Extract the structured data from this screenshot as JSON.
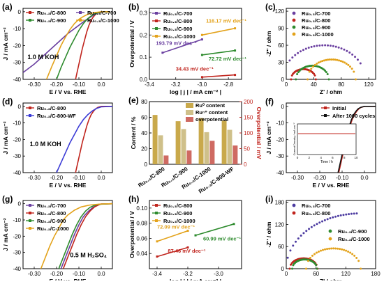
{
  "figure": {
    "panels": [
      {
        "id": "a",
        "letter": "(a)",
        "type": "line",
        "xlabel": "E / V vs. RHE",
        "ylabel": "J / mA cm⁻²",
        "xlim": [
          -0.35,
          0.05
        ],
        "ylim": [
          -40,
          2
        ],
        "xticks": [
          -0.3,
          -0.2,
          -0.1,
          0.0
        ],
        "yticks": [
          -40,
          -30,
          -20,
          -10,
          0
        ],
        "annotations": [
          {
            "text": "1.0 M KOH",
            "x": -0.33,
            "y": -28
          }
        ],
        "legend": {
          "placement": "top",
          "columns": 2
        },
        "series": [
          {
            "name": "Ru₀.₃/C-800",
            "color": "#c0241d",
            "x": [
              -0.115,
              -0.105,
              -0.095,
              -0.085,
              -0.075,
              -0.065,
              -0.055,
              -0.045,
              -0.035,
              -0.025,
              -0.015,
              0.0,
              0.04
            ],
            "y": [
              -40,
              -34,
              -28,
              -22,
              -17,
              -12,
              -8,
              -5,
              -3,
              -1.5,
              -0.6,
              0,
              0
            ]
          },
          {
            "name": "Ru₀.₃/C-700",
            "color": "#6a3fa0",
            "x": [
              -0.35,
              -0.3,
              -0.25,
              -0.2,
              -0.15,
              -0.1,
              -0.07,
              -0.04,
              -0.02,
              0.0,
              0.04
            ],
            "y": [
              -36,
              -31,
              -25,
              -19,
              -13,
              -8,
              -5,
              -2.5,
              -1,
              -0.2,
              0
            ]
          },
          {
            "name": "Ru₀.₃/C-900",
            "color": "#2e8b2e",
            "x": [
              -0.2,
              -0.18,
              -0.16,
              -0.14,
              -0.12,
              -0.1,
              -0.08,
              -0.06,
              -0.04,
              -0.02,
              0.0,
              0.04
            ],
            "y": [
              -40,
              -33,
              -27,
              -21,
              -16,
              -11,
              -7,
              -4,
              -2,
              -0.8,
              -0.1,
              0
            ]
          },
          {
            "name": "Ru₀.₃/C-1000",
            "color": "#e3a21a",
            "x": [
              -0.245,
              -0.22,
              -0.2,
              -0.18,
              -0.16,
              -0.14,
              -0.12,
              -0.1,
              -0.08,
              -0.06,
              -0.03,
              0.0,
              0.04
            ],
            "y": [
              -40,
              -32,
              -26,
              -20,
              -15,
              -10.5,
              -7,
              -4.5,
              -2.8,
              -1.5,
              -0.5,
              0,
              0
            ]
          }
        ]
      },
      {
        "id": "b",
        "letter": "(b)",
        "type": "line",
        "xlabel": "log | j | / mA cm⁻² |",
        "ylabel": "Overpotential / V",
        "xlim": [
          -3.4,
          -2.7
        ],
        "ylim": [
          0.0,
          0.32
        ],
        "xticks": [
          -3.4,
          -3.2,
          -3.0,
          -2.8
        ],
        "yticks": [
          0.0,
          0.1,
          0.2,
          0.3
        ],
        "legend": {
          "placement": "top-left",
          "columns": 1
        },
        "series": [
          {
            "name": "Ru₀.₃/C-700",
            "color": "#6a3fa0",
            "x": [
              -3.3,
              -3.0
            ],
            "y": [
              0.12,
              0.18
            ]
          },
          {
            "name": "Ru₀.₃/C-800",
            "color": "#c0241d",
            "x": [
              -3.0,
              -2.75
            ],
            "y": [
              0.01,
              0.02
            ]
          },
          {
            "name": "Ru₀.₃/C-900",
            "color": "#2e8b2e",
            "x": [
              -3.0,
              -2.75
            ],
            "y": [
              0.11,
              0.13
            ]
          },
          {
            "name": "Ru₀.₃/C-1000",
            "color": "#e3a21a",
            "x": [
              -3.0,
              -2.75
            ],
            "y": [
              0.2,
              0.23
            ]
          }
        ],
        "labels": [
          {
            "text": "193.79 mV dec⁻¹",
            "color": "#6a3fa0",
            "x": -3.35,
            "y": 0.155
          },
          {
            "text": "116.17 mV dec⁻¹",
            "color": "#e3a21a",
            "x": -2.97,
            "y": 0.255
          },
          {
            "text": "72.72 mV dec⁻¹",
            "color": "#2e8b2e",
            "x": -2.95,
            "y": 0.085
          },
          {
            "text": "34.43 mV dec⁻¹",
            "color": "#c0241d",
            "x": -3.2,
            "y": 0.04
          }
        ]
      },
      {
        "id": "c",
        "letter": "(c)",
        "type": "scatter",
        "xlabel": "Z' / ohm",
        "ylabel": "-Z'' / ohm",
        "xlim": [
          0,
          130
        ],
        "ylim": [
          0,
          125
        ],
        "xticks": [
          0,
          40,
          80,
          120
        ],
        "yticks": [
          0,
          30,
          60,
          90,
          120
        ],
        "legend": {
          "placement": "top-left",
          "columns": 1
        },
        "series": [
          {
            "name": "Ru₀.₃/C-700",
            "color": "#6a3fa0",
            "shape": "arc",
            "center": 55,
            "radius": 60,
            "from": 5,
            "to": 108
          },
          {
            "name": "Ru₀.₃/C-800",
            "color": "#c0241d",
            "shape": "arc",
            "center": 25,
            "radius": 18,
            "from": 7,
            "to": 43
          },
          {
            "name": "Ru₀.₃/C-900",
            "color": "#2e8b2e",
            "shape": "arc",
            "center": 38,
            "radius": 24,
            "from": 14,
            "to": 62
          },
          {
            "name": "Ru₀.₃/C-1000",
            "color": "#e3a21a",
            "shape": "arc",
            "center": 66,
            "radius": 35,
            "from": 31,
            "to": 101
          }
        ]
      },
      {
        "id": "d",
        "letter": "(d)",
        "type": "line",
        "xlabel": "E / V vs. RHE",
        "ylabel": "J / mA cm⁻²",
        "xlim": [
          -0.35,
          0.05
        ],
        "ylim": [
          -40,
          2
        ],
        "xticks": [
          -0.3,
          -0.2,
          -0.1,
          0.0
        ],
        "yticks": [
          -40,
          -30,
          -20,
          -10,
          0
        ],
        "annotations": [
          {
            "text": "1.0 M KOH",
            "x": -0.32,
            "y": -24
          }
        ],
        "legend": {
          "placement": "top-left",
          "columns": 1
        },
        "series": [
          {
            "name": "Ru₀.₃/C-800",
            "color": "#c0241d",
            "x": [
              -0.115,
              -0.105,
              -0.095,
              -0.085,
              -0.075,
              -0.065,
              -0.055,
              -0.045,
              -0.035,
              -0.025,
              -0.015,
              0.0,
              0.05
            ],
            "y": [
              -40,
              -34,
              -28,
              -22,
              -17,
              -12,
              -8,
              -5,
              -3,
              -1.5,
              -0.6,
              0,
              0
            ]
          },
          {
            "name": "Ru₀.₃/C-800-WF",
            "color": "#3b3bd6",
            "x": [
              -0.2,
              -0.18,
              -0.16,
              -0.14,
              -0.12,
              -0.1,
              -0.08,
              -0.06,
              -0.04,
              -0.02,
              0.0,
              0.05
            ],
            "y": [
              -40,
              -34,
              -28,
              -22,
              -17,
              -12,
              -8,
              -5,
              -2.8,
              -1.2,
              -0.3,
              0
            ]
          }
        ]
      },
      {
        "id": "e",
        "letter": "(e)",
        "type": "bar",
        "ylabel": "Content / %",
        "y2label": "Overpotential / mV",
        "ylim": [
          0,
          80
        ],
        "y2lim": [
          0,
          200
        ],
        "yticks": [
          0,
          20,
          40,
          60,
          80
        ],
        "y2ticks": [
          0,
          50,
          100,
          150,
          200
        ],
        "categories": [
          "Ru₀.₃/C-800",
          "Ru₀.₃/C-900",
          "Ru₀.₃/C-1000",
          "Ru₀.₃/C-800-WF"
        ],
        "legend": {
          "placement": "top",
          "columns": 1
        },
        "series": [
          {
            "name": "Ru⁰ content",
            "color": "#c9a94b",
            "axis": "left",
            "values": [
              63,
              55,
              59,
              56
            ]
          },
          {
            "name": "Ruⁿ⁺ content",
            "color": "#cfc08a",
            "axis": "left",
            "values": [
              37,
              45,
              41,
              44
            ]
          },
          {
            "name": "overpotential",
            "color": "#cf6a62",
            "axis": "right",
            "values": [
              28,
              44,
              75,
              60
            ]
          }
        ]
      },
      {
        "id": "f",
        "letter": "(f)",
        "type": "line",
        "xlabel": "E / V vs. RHE",
        "ylabel": "J / mA cm⁻²",
        "xlim": [
          -0.35,
          0.05
        ],
        "ylim": [
          -40,
          2
        ],
        "xticks": [
          -0.3,
          -0.2,
          -0.1,
          0.0
        ],
        "yticks": [
          -40,
          -30,
          -20,
          -10,
          0
        ],
        "legend": {
          "placement": "top-right",
          "columns": 1
        },
        "series": [
          {
            "name": "Initial",
            "color": "#c0241d",
            "x": [
              -0.115,
              -0.105,
              -0.095,
              -0.085,
              -0.075,
              -0.065,
              -0.055,
              -0.045,
              -0.035,
              -0.025,
              -0.015,
              0.0,
              0.05
            ],
            "y": [
              -40,
              -34,
              -28,
              -22,
              -17,
              -12,
              -8,
              -5,
              -3,
              -1.5,
              -0.6,
              0,
              0
            ]
          },
          {
            "name": "After 1000 cycles",
            "color": "#111111",
            "x": [
              -0.118,
              -0.108,
              -0.098,
              -0.088,
              -0.078,
              -0.068,
              -0.058,
              -0.048,
              -0.038,
              -0.028,
              -0.017,
              0.0,
              0.05
            ],
            "y": [
              -40,
              -34,
              -28,
              -22,
              -17,
              -12,
              -8,
              -5,
              -3,
              -1.5,
              -0.6,
              0,
              0
            ]
          }
        ],
        "inset": {
          "xlabel": "Time / h",
          "ylabel": "Current Density / mA cm⁻²",
          "xlim": [
            0,
            10
          ],
          "xticks": [
            0,
            2,
            4,
            6,
            8,
            10
          ],
          "line": {
            "color": "#c0241d"
          }
        }
      },
      {
        "id": "g",
        "letter": "(g)",
        "type": "line",
        "xlabel": "E / V vs. RHE",
        "ylabel": "J / mA cm⁻²",
        "xlim": [
          -0.35,
          0.05
        ],
        "ylim": [
          -40,
          2
        ],
        "xticks": [
          -0.3,
          -0.2,
          -0.1,
          0.0
        ],
        "yticks": [
          -40,
          -30,
          -20,
          -10,
          0
        ],
        "annotations": [
          {
            "text": "0.5 M H₂SO₄",
            "x": -0.14,
            "y": -33
          }
        ],
        "legend": {
          "placement": "top-left",
          "columns": 1
        },
        "series": [
          {
            "name": "Ru₀.₃/C-700",
            "color": "#6a3fa0",
            "x": [
              -0.18,
              -0.16,
              -0.14,
              -0.12,
              -0.1,
              -0.08,
              -0.06,
              -0.04,
              -0.02,
              0.0,
              0.05
            ],
            "y": [
              -40,
              -33,
              -26,
              -19,
              -13,
              -8,
              -5,
              -2.5,
              -1,
              -0.2,
              0
            ]
          },
          {
            "name": "Ru₀.₃/C-800",
            "color": "#c0241d",
            "x": [
              -0.17,
              -0.15,
              -0.13,
              -0.11,
              -0.09,
              -0.07,
              -0.05,
              -0.03,
              -0.01,
              0.0,
              0.05
            ],
            "y": [
              -40,
              -33,
              -26,
              -19,
              -13,
              -8,
              -4.5,
              -2,
              -0.6,
              -0.2,
              0
            ]
          },
          {
            "name": "Ru₀.₃/C-900",
            "color": "#2e8b2e",
            "x": [
              -0.19,
              -0.17,
              -0.15,
              -0.13,
              -0.11,
              -0.09,
              -0.07,
              -0.05,
              -0.03,
              -0.01,
              0.05
            ],
            "y": [
              -40,
              -33,
              -26,
              -19,
              -13,
              -8,
              -4.5,
              -2.2,
              -1,
              -0.3,
              0
            ]
          },
          {
            "name": "Ru₀.₃/C-1000",
            "color": "#e3a21a",
            "x": [
              -0.27,
              -0.25,
              -0.23,
              -0.21,
              -0.19,
              -0.17,
              -0.15,
              -0.12,
              -0.09,
              -0.05,
              0.0,
              0.05
            ],
            "y": [
              -40,
              -33,
              -26,
              -20,
              -15,
              -10,
              -7,
              -4,
              -2,
              -0.8,
              -0.2,
              0
            ]
          }
        ]
      },
      {
        "id": "h",
        "letter": "(h)",
        "type": "line",
        "xlabel": "log | j | / mA cm⁻² |",
        "ylabel": "Overpotential / V",
        "xlim": [
          -3.45,
          -2.85
        ],
        "ylim": [
          0.02,
          0.11
        ],
        "xticks": [
          -3.4,
          -3.2,
          -3.0
        ],
        "yticks": [
          0.04,
          0.06,
          0.08,
          0.1
        ],
        "legend": {
          "placement": "top-left",
          "columns": 1
        },
        "series": [
          {
            "name": "Ru₀.₃/C-800",
            "color": "#c0241d",
            "x": [
              -3.4,
              -3.2
            ],
            "y": [
              0.036,
              0.048
            ]
          },
          {
            "name": "Ru₀.₃/C-900",
            "color": "#2e8b2e",
            "x": [
              -3.15,
              -2.9
            ],
            "y": [
              0.064,
              0.079
            ]
          },
          {
            "name": "Ru₀.₃/C-1000",
            "color": "#e3a21a",
            "x": [
              -3.4,
              -3.2
            ],
            "y": [
              0.056,
              0.07
            ]
          }
        ],
        "labels": [
          {
            "text": "72.09 mV dec⁻¹",
            "color": "#e3a21a",
            "x": -3.4,
            "y": 0.073
          },
          {
            "text": "60.99 mV dec⁻¹",
            "color": "#2e8b2e",
            "x": -3.1,
            "y": 0.057
          },
          {
            "text": "87.46 mV dec⁻¹",
            "color": "#c0241d",
            "x": -3.33,
            "y": 0.041
          }
        ]
      },
      {
        "id": "i",
        "letter": "(i)",
        "type": "scatter",
        "xlabel": "Z' / ohm",
        "ylabel": "-Z'' / ohm",
        "xlim": [
          0,
          180
        ],
        "ylim": [
          0,
          185
        ],
        "xticks": [
          0,
          60,
          120,
          180
        ],
        "yticks": [
          0,
          60,
          120,
          180
        ],
        "legend": {
          "placement": "top-left",
          "columns": 1
        },
        "legend2": {
          "placement": "right",
          "series": [
            2,
            3
          ]
        },
        "series": [
          {
            "name": "Ru₀.₃/C-700",
            "color": "#4b3aa0",
            "shape": "arc",
            "center": 150,
            "radius": 150,
            "from": 3,
            "to": 142
          },
          {
            "name": "Ru₀.₃/C-800",
            "color": "#c0241d",
            "shape": "arc",
            "center": 35,
            "radius": 28,
            "from": 7,
            "to": 63
          },
          {
            "name": "Ru₀.₃/C-900",
            "color": "#2e8b2e",
            "shape": "arc",
            "center": 37,
            "radius": 25,
            "from": 12,
            "to": 62
          },
          {
            "name": "Ru₀.₃/C-1000",
            "color": "#e3a21a",
            "shape": "arc",
            "center": 95,
            "radius": 55,
            "from": 40,
            "to": 150
          }
        ]
      }
    ]
  }
}
